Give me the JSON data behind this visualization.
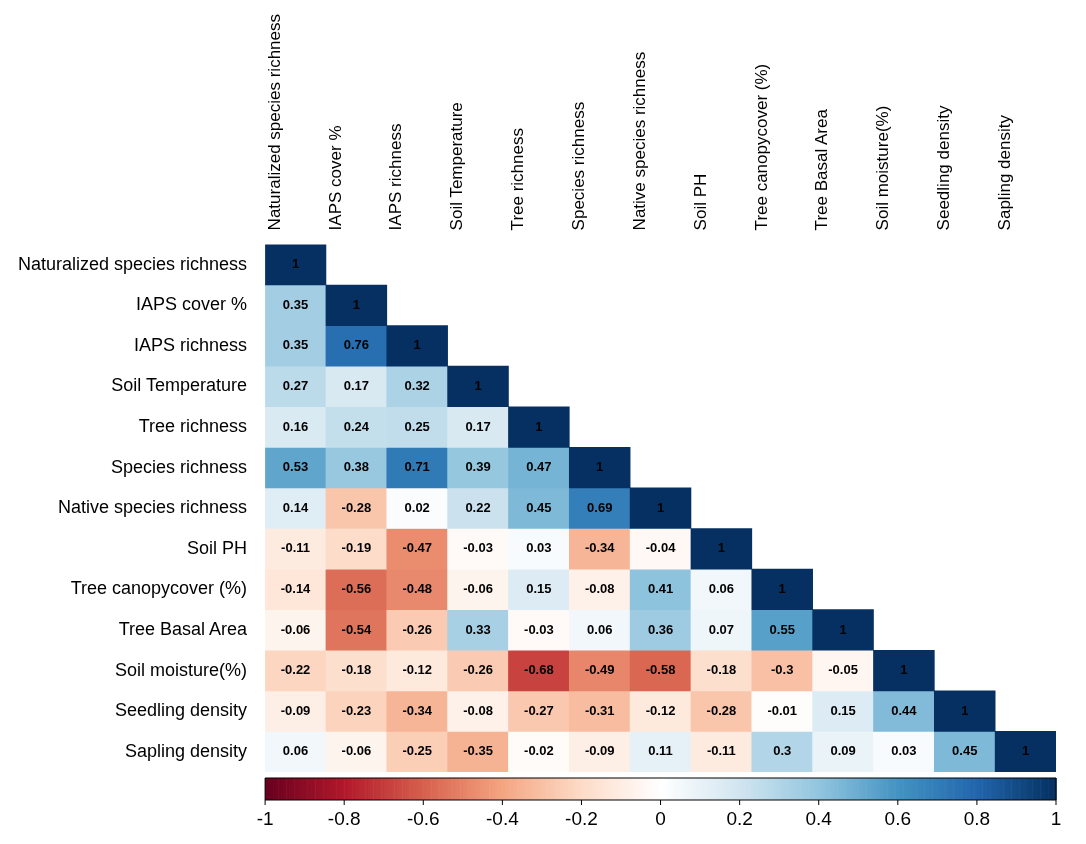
{
  "chart_data": {
    "type": "heatmap",
    "categories": [
      "Naturalized species richness",
      "IAPS cover %",
      "IAPS richness",
      "Soil Temperature",
      "Tree richness",
      "Species richness",
      "Native species richness",
      "Soil PH",
      "Tree canopycover (%)",
      "Tree Basal Area",
      "Soil moisture(%)",
      "Seedling density",
      "Sapling density"
    ],
    "y_categories": [
      "Naturalized species richness",
      "IAPS cover %",
      "IAPS richness",
      "Soil Temperature",
      "Tree richness",
      "Species richness",
      "Native species richness",
      "Soil PH",
      "Tree canopycover (%)",
      "Tree Basal Area",
      "Soil moisture(%)",
      "Seedling density",
      "Sapling density"
    ],
    "cells": [
      [
        1,
        null,
        null,
        null,
        null,
        null,
        null,
        null,
        null,
        null,
        null,
        null,
        null
      ],
      [
        0.35,
        1,
        null,
        null,
        null,
        null,
        null,
        null,
        null,
        null,
        null,
        null,
        null
      ],
      [
        0.35,
        0.76,
        1,
        null,
        null,
        null,
        null,
        null,
        null,
        null,
        null,
        null,
        null
      ],
      [
        0.27,
        0.17,
        0.32,
        1,
        null,
        null,
        null,
        null,
        null,
        null,
        null,
        null,
        null
      ],
      [
        0.16,
        0.24,
        0.25,
        0.17,
        1,
        null,
        null,
        null,
        null,
        null,
        null,
        null,
        null
      ],
      [
        0.53,
        0.38,
        0.71,
        0.39,
        0.47,
        1,
        null,
        null,
        null,
        null,
        null,
        null,
        null
      ],
      [
        0.14,
        -0.28,
        0.02,
        0.22,
        0.45,
        0.69,
        1,
        null,
        null,
        null,
        null,
        null,
        null
      ],
      [
        -0.11,
        -0.19,
        -0.47,
        -0.03,
        0.03,
        -0.34,
        -0.04,
        1,
        null,
        null,
        null,
        null,
        null
      ],
      [
        -0.14,
        -0.56,
        -0.48,
        -0.06,
        0.15,
        -0.08,
        0.41,
        0.06,
        1,
        null,
        null,
        null,
        null
      ],
      [
        -0.06,
        -0.54,
        -0.26,
        0.33,
        -0.03,
        0.06,
        0.36,
        0.07,
        0.55,
        1,
        null,
        null,
        null
      ],
      [
        -0.22,
        -0.18,
        -0.12,
        -0.26,
        -0.68,
        -0.49,
        -0.58,
        -0.18,
        -0.3,
        -0.05,
        1,
        null,
        null
      ],
      [
        -0.09,
        -0.23,
        -0.34,
        -0.08,
        -0.27,
        -0.31,
        -0.12,
        -0.28,
        -0.01,
        0.15,
        0.44,
        1,
        null
      ],
      [
        0.06,
        -0.06,
        -0.25,
        -0.35,
        -0.02,
        -0.09,
        0.11,
        -0.11,
        0.3,
        0.09,
        0.03,
        0.45,
        1
      ]
    ],
    "clim": [
      -1,
      1
    ],
    "cticks": [
      -1,
      -0.8,
      -0.6,
      -0.4,
      -0.2,
      0,
      0.2,
      0.4,
      0.6,
      0.8,
      1
    ],
    "data_labels": true
  }
}
